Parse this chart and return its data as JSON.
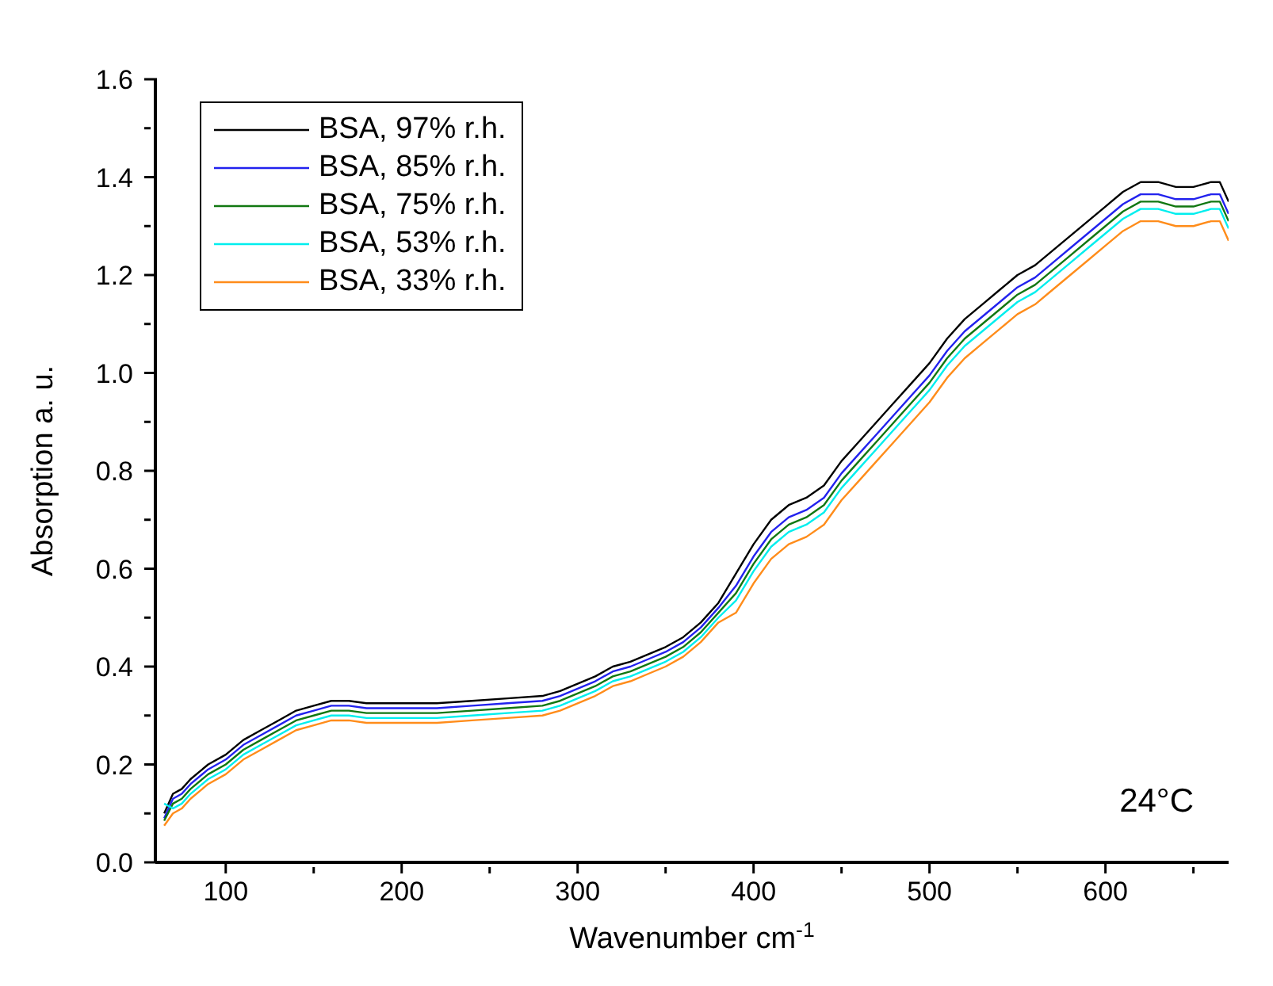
{
  "chart_data": {
    "type": "line",
    "xlabel": "Wavenumber cm$^{-1}$",
    "ylabel": "Absorption a. u.",
    "annotations": [
      "24°C"
    ],
    "x": [
      65,
      70,
      75,
      80,
      90,
      100,
      110,
      120,
      130,
      140,
      150,
      160,
      170,
      180,
      200,
      220,
      240,
      260,
      280,
      290,
      300,
      310,
      320,
      330,
      340,
      350,
      360,
      370,
      380,
      390,
      400,
      410,
      420,
      430,
      440,
      450,
      460,
      470,
      480,
      490,
      500,
      510,
      520,
      530,
      540,
      550,
      560,
      570,
      580,
      590,
      600,
      610,
      620,
      630,
      640,
      650,
      660,
      665,
      670
    ],
    "series": [
      {
        "name": "BSA, 97% r.h.",
        "color": "#000000",
        "values": [
          0.1,
          0.14,
          0.15,
          0.17,
          0.2,
          0.22,
          0.25,
          0.27,
          0.29,
          0.31,
          0.32,
          0.33,
          0.33,
          0.325,
          0.325,
          0.325,
          0.33,
          0.335,
          0.34,
          0.35,
          0.365,
          0.38,
          0.4,
          0.41,
          0.425,
          0.44,
          0.46,
          0.49,
          0.53,
          0.59,
          0.65,
          0.7,
          0.73,
          0.745,
          0.77,
          0.82,
          0.86,
          0.9,
          0.94,
          0.98,
          1.02,
          1.07,
          1.11,
          1.14,
          1.17,
          1.2,
          1.22,
          1.25,
          1.28,
          1.31,
          1.34,
          1.37,
          1.39,
          1.39,
          1.38,
          1.38,
          1.39,
          1.39,
          1.35
        ]
      },
      {
        "name": "BSA, 85% r.h.",
        "color": "#2222ee",
        "values": [
          0.09,
          0.13,
          0.14,
          0.16,
          0.19,
          0.21,
          0.24,
          0.26,
          0.28,
          0.3,
          0.31,
          0.32,
          0.32,
          0.315,
          0.315,
          0.315,
          0.32,
          0.325,
          0.33,
          0.34,
          0.355,
          0.37,
          0.39,
          0.4,
          0.415,
          0.43,
          0.45,
          0.48,
          0.52,
          0.565,
          0.625,
          0.675,
          0.705,
          0.72,
          0.745,
          0.795,
          0.835,
          0.875,
          0.915,
          0.955,
          0.995,
          1.045,
          1.085,
          1.115,
          1.145,
          1.175,
          1.195,
          1.225,
          1.255,
          1.285,
          1.315,
          1.345,
          1.365,
          1.365,
          1.355,
          1.355,
          1.365,
          1.365,
          1.325
        ]
      },
      {
        "name": "BSA, 75% r.h.",
        "color": "#117711",
        "values": [
          0.085,
          0.12,
          0.13,
          0.15,
          0.18,
          0.2,
          0.23,
          0.25,
          0.27,
          0.29,
          0.3,
          0.31,
          0.31,
          0.305,
          0.305,
          0.305,
          0.31,
          0.315,
          0.32,
          0.33,
          0.345,
          0.36,
          0.38,
          0.39,
          0.405,
          0.42,
          0.44,
          0.47,
          0.51,
          0.55,
          0.61,
          0.66,
          0.69,
          0.705,
          0.73,
          0.78,
          0.82,
          0.86,
          0.9,
          0.94,
          0.98,
          1.03,
          1.07,
          1.1,
          1.13,
          1.16,
          1.18,
          1.21,
          1.24,
          1.27,
          1.3,
          1.33,
          1.35,
          1.35,
          1.34,
          1.34,
          1.35,
          1.35,
          1.31
        ]
      },
      {
        "name": "BSA, 53% r.h.",
        "color": "#00eeee",
        "values": [
          0.12,
          0.11,
          0.12,
          0.14,
          0.17,
          0.19,
          0.22,
          0.24,
          0.26,
          0.28,
          0.29,
          0.3,
          0.3,
          0.295,
          0.295,
          0.295,
          0.3,
          0.305,
          0.31,
          0.32,
          0.335,
          0.35,
          0.37,
          0.38,
          0.395,
          0.41,
          0.43,
          0.46,
          0.5,
          0.535,
          0.595,
          0.645,
          0.675,
          0.69,
          0.715,
          0.765,
          0.805,
          0.845,
          0.885,
          0.925,
          0.965,
          1.015,
          1.055,
          1.085,
          1.115,
          1.145,
          1.165,
          1.195,
          1.225,
          1.255,
          1.285,
          1.315,
          1.335,
          1.335,
          1.325,
          1.325,
          1.335,
          1.335,
          1.295
        ]
      },
      {
        "name": "BSA, 33% r.h.",
        "color": "#ff8c1a",
        "values": [
          0.075,
          0.1,
          0.11,
          0.13,
          0.16,
          0.18,
          0.21,
          0.23,
          0.25,
          0.27,
          0.28,
          0.29,
          0.29,
          0.285,
          0.285,
          0.285,
          0.29,
          0.295,
          0.3,
          0.31,
          0.325,
          0.34,
          0.36,
          0.37,
          0.385,
          0.4,
          0.42,
          0.45,
          0.49,
          0.51,
          0.57,
          0.62,
          0.65,
          0.665,
          0.69,
          0.74,
          0.78,
          0.82,
          0.86,
          0.9,
          0.94,
          0.99,
          1.03,
          1.06,
          1.09,
          1.12,
          1.14,
          1.17,
          1.2,
          1.23,
          1.26,
          1.29,
          1.31,
          1.31,
          1.3,
          1.3,
          1.31,
          1.31,
          1.27
        ]
      }
    ],
    "xlim": [
      60,
      670
    ],
    "xticks": [
      100,
      {
        "value": 150,
        "label": null
      },
      200,
      {
        "value": 250,
        "label": null
      },
      300,
      {
        "value": 350,
        "label": null
      },
      400,
      {
        "value": 450,
        "label": null
      },
      500,
      {
        "value": 550,
        "label": null
      },
      600,
      {
        "value": 650,
        "label": null
      }
    ],
    "ylim": [
      0,
      1.6
    ],
    "yticks": [
      {
        "value": 0,
        "label": "0.0"
      },
      {
        "value": 0.1,
        "label": null
      },
      {
        "value": 0.2,
        "label": "0.2"
      },
      {
        "value": 0.3,
        "label": null
      },
      {
        "value": 0.4,
        "label": "0.4"
      },
      {
        "value": 0.5,
        "label": null
      },
      {
        "value": 0.6,
        "label": "0.6"
      },
      {
        "value": 0.7,
        "label": null
      },
      {
        "value": 0.8,
        "label": "0.8"
      },
      {
        "value": 0.9,
        "label": null
      },
      {
        "value": 1.0,
        "label": "1.0"
      },
      {
        "value": 1.1,
        "label": null
      },
      {
        "value": 1.2,
        "label": "1.2"
      },
      {
        "value": 1.3,
        "label": null
      },
      {
        "value": 1.4,
        "label": "1.4"
      },
      {
        "value": 1.5,
        "label": null
      },
      {
        "value": 1.6,
        "label": "1.6"
      }
    ],
    "grid": false,
    "legend": "top left",
    "line_style": "solid",
    "marker": "none"
  }
}
